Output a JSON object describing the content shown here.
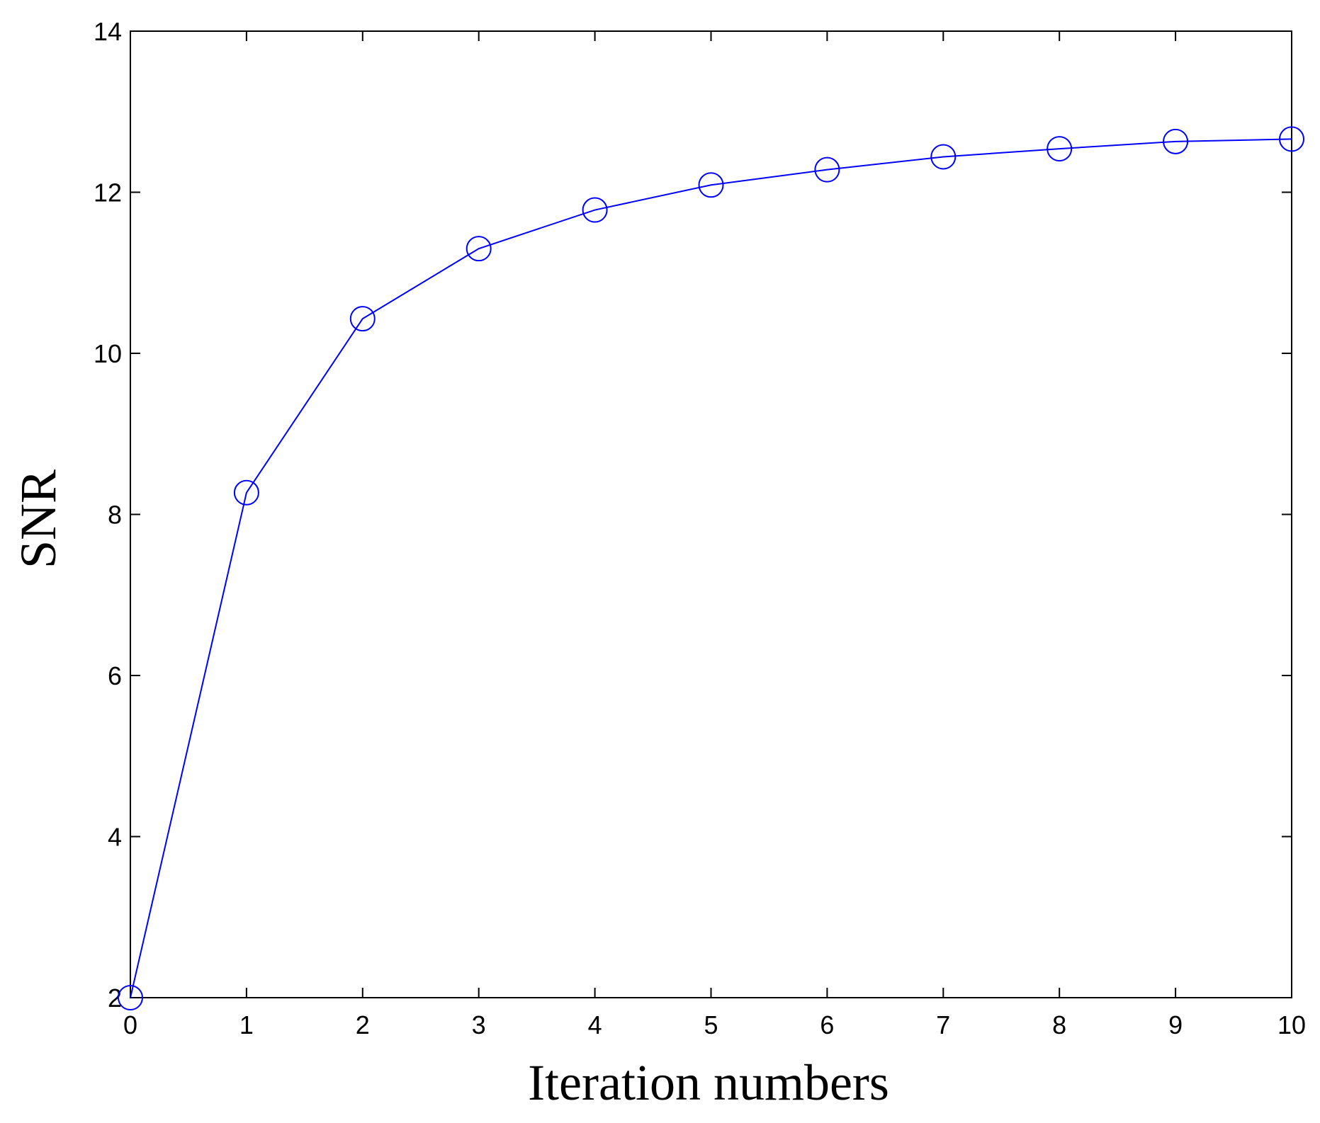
{
  "chart_data": {
    "type": "line",
    "title": "",
    "xlabel": "Iteration numbers",
    "ylabel": "SNR",
    "xlim": [
      0,
      10
    ],
    "ylim": [
      2,
      14
    ],
    "xticks": [
      0,
      1,
      2,
      3,
      4,
      5,
      6,
      7,
      8,
      9,
      10
    ],
    "yticks": [
      2,
      4,
      6,
      8,
      10,
      12,
      14
    ],
    "grid": false,
    "legend": "none",
    "series": [
      {
        "color": "#0000ff",
        "marker": "circle-open",
        "x": [
          0,
          1,
          2,
          3,
          4,
          5,
          6,
          7,
          8,
          9,
          10
        ],
        "y": [
          2.0,
          8.27,
          10.43,
          11.3,
          11.78,
          12.09,
          12.28,
          12.44,
          12.54,
          12.63,
          12.66
        ]
      }
    ]
  }
}
